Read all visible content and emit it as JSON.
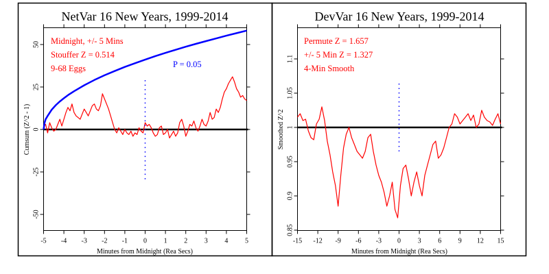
{
  "chart_data": [
    {
      "type": "line",
      "title": "NetVar 16 New Years, 1999-2014",
      "xlabel": "Minutes from Midnight (Rea Secs)",
      "ylabel": "Cumsum (Z^2 - 1)",
      "xlim": [
        -5,
        5
      ],
      "ylim": [
        -59,
        60
      ],
      "xticks": [
        "-5",
        "-4",
        "-3",
        "-2",
        "-1",
        "0",
        "1",
        "2",
        "3",
        "4",
        "5"
      ],
      "xtick_values": [
        -5,
        -4,
        -3,
        -2,
        -1,
        0,
        1,
        2,
        3,
        4,
        5
      ],
      "yticks": [
        "50",
        "25",
        "0",
        "-25",
        "-50"
      ],
      "ytick_values": [
        50,
        25,
        0,
        -25,
        -50
      ],
      "grid": false,
      "reference_line": {
        "y": 0,
        "color": "#000000"
      },
      "marker_line": {
        "x": 0,
        "y_from": -30,
        "y_to": 29,
        "style": "dotted",
        "color": "#0000ff"
      },
      "annotations": [
        {
          "text": "Midnight, +/- 5 Mins",
          "color": "#ff0000"
        },
        {
          "text": "Stouffer Z = 0.514",
          "color": "#ff0000"
        },
        {
          "text": "9-68 Eggs",
          "color": "#ff0000"
        },
        {
          "text": "P = 0.05",
          "color": "#0000ff"
        }
      ],
      "series": [
        {
          "name": "Cumsum",
          "color": "#ff0000",
          "x": [
            -5,
            -4.9,
            -4.8,
            -4.7,
            -4.6,
            -4.5,
            -4.4,
            -4.3,
            -4.2,
            -4.1,
            -4,
            -3.9,
            -3.8,
            -3.7,
            -3.6,
            -3.5,
            -3.4,
            -3.3,
            -3.2,
            -3.1,
            -3,
            -2.9,
            -2.8,
            -2.7,
            -2.6,
            -2.5,
            -2.4,
            -2.3,
            -2.2,
            -2.1,
            -2,
            -1.9,
            -1.8,
            -1.7,
            -1.6,
            -1.5,
            -1.4,
            -1.3,
            -1.2,
            -1.1,
            -1,
            -0.9,
            -0.8,
            -0.7,
            -0.6,
            -0.5,
            -0.4,
            -0.3,
            -0.2,
            -0.1,
            0,
            0.1,
            0.2,
            0.3,
            0.4,
            0.5,
            0.6,
            0.7,
            0.8,
            0.9,
            1,
            1.1,
            1.2,
            1.3,
            1.4,
            1.5,
            1.6,
            1.7,
            1.8,
            1.9,
            2,
            2.1,
            2.2,
            2.3,
            2.4,
            2.5,
            2.6,
            2.7,
            2.8,
            2.9,
            3,
            3.1,
            3.2,
            3.3,
            3.4,
            3.5,
            3.6,
            3.7,
            3.8,
            3.9,
            4,
            4.1,
            4.2,
            4.3,
            4.4,
            4.5,
            4.6,
            4.7,
            4.8,
            4.9,
            5
          ],
          "y": [
            2,
            3,
            -2,
            4,
            1,
            -1,
            0,
            3,
            6,
            2,
            6,
            10,
            13,
            11,
            15,
            10,
            8,
            7,
            6,
            9,
            12,
            10,
            8,
            11,
            14,
            15,
            12,
            11,
            14,
            21,
            18,
            15,
            12,
            8,
            4,
            0,
            -2,
            1,
            -1,
            -3,
            0,
            -2,
            -3,
            -1,
            -4,
            -2,
            -3,
            1,
            -1,
            -2,
            4,
            2,
            3,
            1,
            -2,
            -4,
            -3,
            1,
            2,
            -3,
            -2,
            0,
            -5,
            -3,
            -1,
            -4,
            -2,
            4,
            6,
            2,
            -4,
            -1,
            3,
            2,
            5,
            1,
            -1,
            2,
            6,
            3,
            2,
            5,
            10,
            6,
            7,
            12,
            10,
            13,
            18,
            22,
            24,
            27,
            29,
            31,
            28,
            24,
            22,
            19,
            20,
            18,
            17
          ]
        },
        {
          "name": "P = 0.05",
          "color": "#0000ff",
          "x": [
            -5,
            -4.95,
            -4.9,
            -4.8,
            -4.6,
            -4.4,
            -4.2,
            -4,
            -3.75,
            -3.5,
            -3,
            -2.5,
            -2,
            -1.5,
            -1,
            -0.5,
            0,
            0.5,
            1,
            1.5,
            2,
            2.5,
            3,
            3.5,
            4,
            4.5,
            5
          ],
          "y": [
            0,
            4,
            6,
            8,
            11.6,
            14.3,
            16.5,
            18.4,
            20.6,
            22.5,
            26,
            29.1,
            31.9,
            34.4,
            36.8,
            39,
            41.1,
            43.2,
            45.1,
            46.9,
            48.7,
            50.4,
            52,
            53.6,
            55.2,
            56.7,
            58.2
          ]
        }
      ]
    },
    {
      "type": "line",
      "title": "DevVar 16 New Years, 1999-2014",
      "xlabel": "Minutes from Midnight (Rea Secs)",
      "ylabel": "Smoothed Z^2",
      "xlim": [
        -15,
        15
      ],
      "ylim": [
        0.85,
        1.145
      ],
      "xticks": [
        "-15",
        "-12",
        "-9",
        "-6",
        "-3",
        "0",
        "3",
        "6",
        "9",
        "12",
        "15"
      ],
      "xtick_values": [
        -15,
        -12,
        -9,
        -6,
        -3,
        0,
        3,
        6,
        9,
        12,
        15
      ],
      "yticks": [
        "1.1",
        "1.05",
        "1",
        "0.95",
        "0.9",
        "0.85"
      ],
      "ytick_values": [
        1.1,
        1.05,
        1,
        0.95,
        0.9,
        0.85
      ],
      "grid": false,
      "reference_line": {
        "y": 1,
        "color": "#000000"
      },
      "marker_line": {
        "x": 0,
        "y_from": 0.965,
        "y_to": 1.064,
        "style": "dotted",
        "color": "#0000ff"
      },
      "annotations": [
        {
          "text": "Permute Z = 1.657",
          "color": "#ff0000"
        },
        {
          "text": "+/- 5 Min Z = 1.327",
          "color": "#ff0000"
        },
        {
          "text": "4-Min Smooth",
          "color": "#ff0000"
        }
      ],
      "series": [
        {
          "name": "Smoothed Z^2",
          "color": "#ff0000",
          "x": [
            -15,
            -14.6,
            -14.2,
            -13.8,
            -13.4,
            -13,
            -12.6,
            -12.2,
            -11.8,
            -11.4,
            -11,
            -10.6,
            -10.2,
            -9.8,
            -9.4,
            -9,
            -8.6,
            -8.2,
            -7.8,
            -7.4,
            -7,
            -6.6,
            -6.2,
            -5.8,
            -5.4,
            -5,
            -4.6,
            -4.2,
            -3.8,
            -3.4,
            -3,
            -2.6,
            -2.2,
            -1.8,
            -1.4,
            -1,
            -0.6,
            -0.2,
            0.2,
            0.6,
            1,
            1.4,
            1.8,
            2.2,
            2.6,
            3,
            3.4,
            3.8,
            4.2,
            4.6,
            5,
            5.4,
            5.8,
            6.2,
            6.6,
            7,
            7.4,
            7.8,
            8.2,
            8.6,
            9,
            9.4,
            9.8,
            10.2,
            10.6,
            11,
            11.4,
            11.8,
            12.2,
            12.6,
            13,
            13.4,
            13.8,
            14.2,
            14.6,
            15
          ],
          "y": [
            1.015,
            1.02,
            1.01,
            1.012,
            0.995,
            0.985,
            0.982,
            1.005,
            1.012,
            1.03,
            1.01,
            0.98,
            0.96,
            0.935,
            0.915,
            0.885,
            0.93,
            0.97,
            0.99,
            1.0,
            0.985,
            0.975,
            0.965,
            0.96,
            0.955,
            0.965,
            0.985,
            0.99,
            0.965,
            0.945,
            0.93,
            0.92,
            0.905,
            0.885,
            0.9,
            0.92,
            0.88,
            0.868,
            0.915,
            0.94,
            0.945,
            0.925,
            0.9,
            0.92,
            0.935,
            0.915,
            0.9,
            0.93,
            0.945,
            0.96,
            0.975,
            0.98,
            0.955,
            0.96,
            0.97,
            0.985,
            1.0,
            1.005,
            1.02,
            1.015,
            1.005,
            1.01,
            1.015,
            1.02,
            1.01,
            1.018,
            1.0,
            1.005,
            1.025,
            1.015,
            1.01,
            1.008,
            1.003,
            1.012,
            1.02,
            1.005
          ]
        }
      ]
    }
  ]
}
